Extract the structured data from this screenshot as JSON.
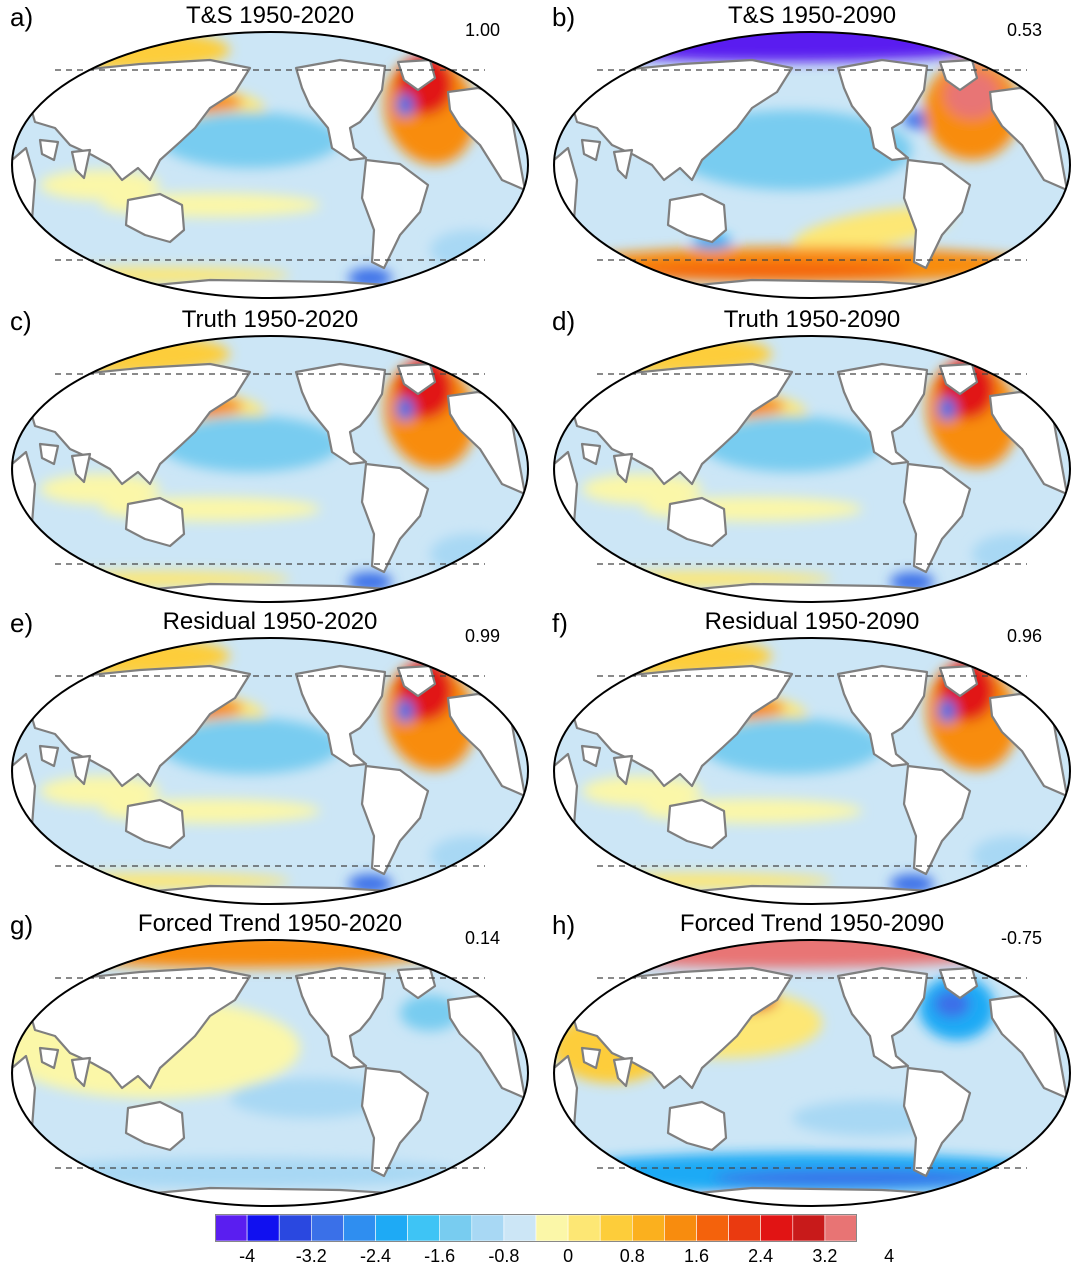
{
  "panels": [
    {
      "letter": "a)",
      "title": "T&S 1950-2020",
      "corr": "1.00",
      "variant": "warm_na"
    },
    {
      "letter": "b)",
      "title": "T&S 1950-2090",
      "corr": "0.53",
      "variant": "future_ts"
    },
    {
      "letter": "c)",
      "title": "Truth 1950-2020",
      "corr": "",
      "variant": "warm_na"
    },
    {
      "letter": "d)",
      "title": "Truth 1950-2090",
      "corr": "",
      "variant": "warm_na"
    },
    {
      "letter": "e)",
      "title": "Residual 1950-2020",
      "corr": "0.99",
      "variant": "warm_na"
    },
    {
      "letter": "f)",
      "title": "Residual 1950-2090",
      "corr": "0.96",
      "variant": "warm_na"
    },
    {
      "letter": "g)",
      "title": "Forced Trend 1950-2020",
      "corr": "0.14",
      "variant": "forced_early"
    },
    {
      "letter": "h)",
      "title": "Forced Trend 1950-2090",
      "corr": "-0.75",
      "variant": "forced_late"
    }
  ],
  "colorbar": {
    "colors": [
      "#5a1ef0",
      "#1010f0",
      "#2a48e0",
      "#3a70e8",
      "#2f8ef0",
      "#1eaaf5",
      "#3ec4f5",
      "#78ccf0",
      "#a8d8f4",
      "#cce6f6",
      "#fbf7a8",
      "#fde774",
      "#fdcd3a",
      "#fbb01e",
      "#f88c0e",
      "#f4620c",
      "#ea3a10",
      "#e11414",
      "#c81a1a",
      "#e87474"
    ],
    "labels": [
      "-4",
      "-3.2",
      "-2.4",
      "-1.6",
      "-0.8",
      "0",
      "0.8",
      "1.6",
      "2.4",
      "3.2",
      "4"
    ]
  }
}
